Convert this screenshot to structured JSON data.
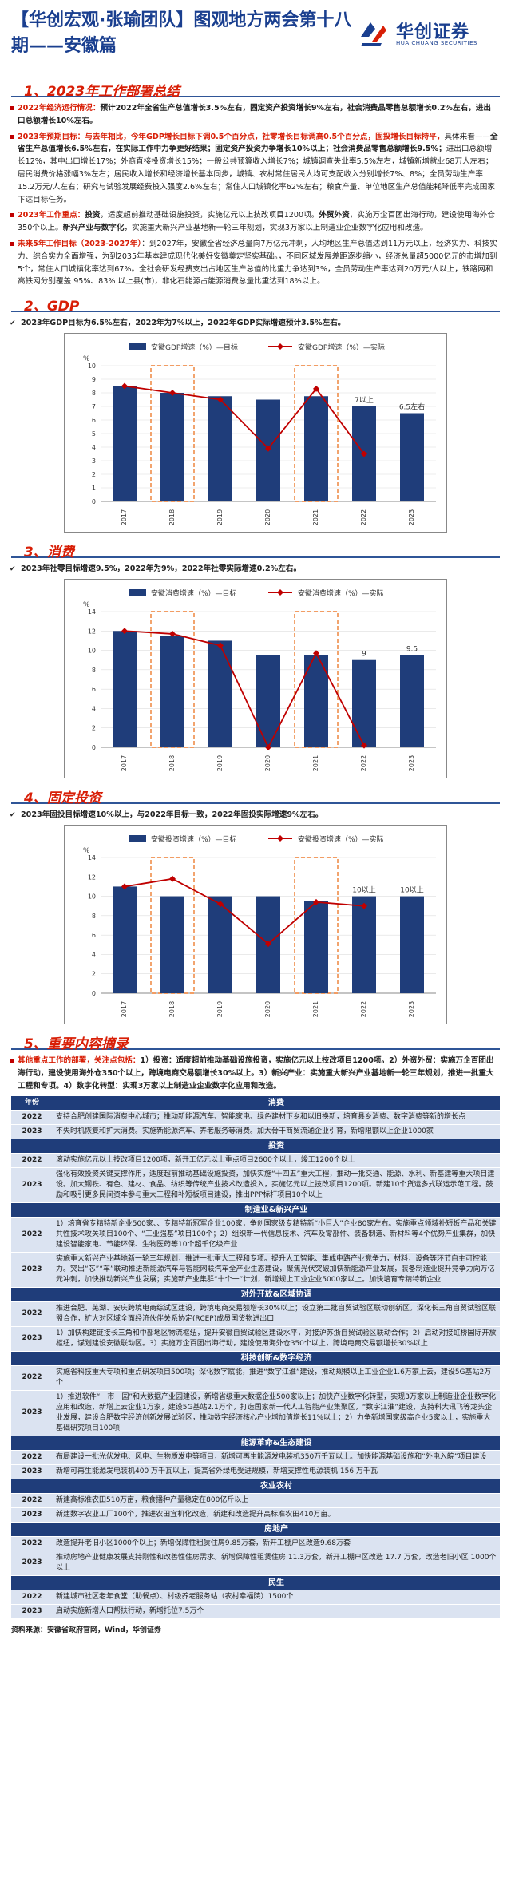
{
  "header": {
    "title": "【华创宏观·张瑜团队】图观地方两会第十八期——安徽篇",
    "logo_cn": "华创证券",
    "logo_en": "HUA CHUANG SECURITIES"
  },
  "sec1": {
    "title": "1、2023年工作部署总结",
    "b1_label": "2022年经济运行情况：",
    "b1_text": "预计2022年全省生产总值增长3.5%左右，固定资产投资增长9%左右，社会消费品零售总额增长0.2%左右，进出口总额增长10%左右。",
    "b2_label": "2023年预期目标：",
    "b2_red": "与去年相比，今年GDP增长目标下调0.5个百分点，社零增长目标调高0.5个百分点，固投增长目标持平，",
    "b2_text1": "具体来看——",
    "b2_bold": "全省生产总值增长6.5%左右，在实际工作中力争更好结果；固定资产投资力争增长10%以上；社会消费品零售总额增长9.5%；",
    "b2_text2": "进出口总额增长12%，其中出口增长17%；外商直接投资增长15%；一般公共预算收入增长7%；城镇调查失业率5.5%左右，城镇新增就业68万人左右；居民消费价格涨幅3%左右；居民收入增长和经济增长基本同步，城镇、农村常住居民人均可支配收入分别增长7%、8%；全员劳动生产率15.2万元/人左右；研究与试验发展经费投入强度2.6%左右；常住人口城镇化率62%左右；粮食产量、单位地区生产总值能耗降低率完成国家下达目标任务。",
    "b3_label": "2023年工作重点：",
    "b3_t1": "投资",
    "b3_t2": "，适度超前推动基础设施投资，实施亿元以上技改项目1200项。",
    "b3_t3": "外贸外资",
    "b3_t4": "，实施万企百团出海行动，建设使用海外仓350个以上。",
    "b3_t5": "新兴产业与数字化",
    "b3_t6": "，实施重大新兴产业基地新一轮三年规划，实现3万家以上制造业企业数字化应用和改造。",
    "b4_label": "未来5年工作目标（2023-2027年）",
    "b4_text": "：到2027年，安徽全省经济总量向7万亿元冲刺，人均地区生产总值达到11万元以上，经济实力、科技实力、综合实力全面增强，为到2035年基本建成现代化美好安徽奠定坚实基础。，不同区域发展差距逐步缩小，经济总量超5000亿元的市增加到5个，常住人口城镇化率达到67%。全社会研发经费支出占地区生产总值的比重力争达到3%，全员劳动生产率达到20万元/人以上，铁路网和高铁网分别覆盖 95%、83% 以上县(市)，非化石能源占能源消费总量比重达到18%以上。"
  },
  "sec2": {
    "title": "2、GDP",
    "check": "2023年GDP目标为6.5%左右，2022年为7%以上，2022年GDP实际增速预计3.5%左右。"
  },
  "sec3": {
    "title": "3、消费",
    "check": "2023年社零目标增速9.5%，2022年为9%，2022年社零实际增速0.2%左右。"
  },
  "sec4": {
    "title": "4、固定投资",
    "check": "2023年固投目标增速10%以上，与2022年目标一致，2022年固投实际增速9%左右。"
  },
  "chart_data": [
    {
      "type": "bar",
      "series": [
        {
          "name": "安徽GDP增速（%）—目标",
          "values": [
            8.5,
            8.0,
            7.75,
            7.5,
            7.75,
            7.0,
            6.5
          ]
        },
        {
          "name": "安徽GDP增速（%）—实际",
          "values": [
            8.5,
            8.0,
            7.5,
            3.9,
            8.3,
            3.5,
            null
          ]
        }
      ],
      "categories": [
        "2017",
        "2018",
        "2019",
        "2020",
        "2021",
        "2022",
        "2023"
      ],
      "ylim": [
        0,
        10
      ],
      "yticks": [
        0,
        1,
        2,
        3,
        4,
        5,
        6,
        7,
        8,
        9,
        10
      ],
      "ylabel": "%",
      "data_labels": {
        "5": "7以上",
        "6": "6.5左右"
      },
      "highlight": [
        1,
        4
      ]
    },
    {
      "type": "bar",
      "series": [
        {
          "name": "安徽消费增速（%）—目标",
          "values": [
            12,
            11.5,
            11,
            9.5,
            9.5,
            9,
            9.5
          ]
        },
        {
          "name": "安徽消费增速（%）—实际",
          "values": [
            12,
            11.7,
            10.5,
            0,
            9.7,
            0.2,
            null
          ]
        }
      ],
      "categories": [
        "2017",
        "2018",
        "2019",
        "2020",
        "2021",
        "2022",
        "2023"
      ],
      "ylim": [
        0,
        14
      ],
      "yticks": [
        0,
        2,
        4,
        6,
        8,
        10,
        12,
        14
      ],
      "ylabel": "%",
      "data_labels": {
        "5": "9",
        "6": "9.5"
      },
      "highlight": [
        1,
        4
      ]
    },
    {
      "type": "bar",
      "series": [
        {
          "name": "安徽投资增速（%）—目标",
          "values": [
            11,
            10,
            10,
            10,
            9.5,
            10,
            10
          ]
        },
        {
          "name": "安徽投资增速（%）—实际",
          "values": [
            11,
            11.8,
            9.2,
            5.1,
            9.4,
            9,
            null
          ]
        }
      ],
      "categories": [
        "2017",
        "2018",
        "2019",
        "2020",
        "2021",
        "2022",
        "2023"
      ],
      "ylim": [
        0,
        14
      ],
      "yticks": [
        0,
        2,
        4,
        6,
        8,
        10,
        12,
        14
      ],
      "ylabel": "%",
      "data_labels": {
        "5": "10以上",
        "6": "10以上"
      },
      "highlight": [
        1,
        4
      ]
    }
  ],
  "sec5": {
    "title": "5、重要内容摘录",
    "intro_label": "其他重点工作的部署，关注点包括：",
    "intro_text": "1）投资：适度超前推动基础设施投资，实施亿元以上技改项目1200项。2）外资外贸：实施万企百团出海行动，建设使用海外仓350个以上，跨境电商交易额增长30%以上。3）新兴产业：实施重大新兴产业基地新一轮三年规划，推进一批重大工程和专项。4）数字化转型：实现3万家以上制造业企业数字化应用和改造。"
  },
  "table": {
    "header_year": "年份",
    "sections": [
      {
        "cat": "消费",
        "rows": [
          {
            "y": "2022",
            "t": "支持合肥创建国际消费中心城市；推动新能源汽车、智能家电、绿色建材下乡和以旧换新，培育县乡消费、数字消费等新的增长点"
          },
          {
            "y": "2023",
            "t": "不失时机恢复和扩大消费。实施新能源汽车、养老服务等消费。加大骨干商贸流通企业引育，新增限额以上企业1000家"
          }
        ]
      },
      {
        "cat": "投资",
        "rows": [
          {
            "y": "2022",
            "t": "滚动实施亿元以上技改项目1200项，新开工亿元以上重点项目2600个以上，竣工1200个以上"
          },
          {
            "y": "2023",
            "t": "强化有效投资关键支撑作用，适度超前推动基础设施投资，加快实施“十四五”重大工程，推动一批交通、能源、水利、新基建等重大项目建设。加大钢铁、有色、建材、食品、纺织等传统产业技术改造投入，实施亿元以上技改项目1200项。新建10个货运多式联运示范工程。鼓励和吸引更多民间资本参与重大工程和补短板项目建设，推出PPP标杆项目10个以上"
          }
        ]
      },
      {
        "cat": "制造业&新兴产业",
        "rows": [
          {
            "y": "2022",
            "t": "1）培育省专精特新企业500家、、专精特新冠军企业100家，争创国家级专精特新“小巨人”企业80家左右。实施重点领域补短板产品和关键共性技术攻关项目100个、“工业强基”项目100个；2）组织新一代信息技术、汽车及零部件、装备制造、新材料等4个优势产业集群，加快建设智能家电、节能环保、生物医药等10个超千亿级产业"
          },
          {
            "y": "2023",
            "t": "实施重大新兴产业基地新一轮三年规划，推进一批重大工程和专项。提升人工智能、集成电路产业竞争力，材料，设备等环节自主可控能力。突出“芯”“车”联动推进新能源汽车与智能网联汽车全产业生态建设，聚焦光伏突破加快新能源产业发展，装备制造业提升竞争力向万亿元冲刺，加快推动新兴产业发展；实施新产业集群“十个一”计划，新增规上工业企业5000家以上。加快培育专精特新企业"
          }
        ]
      },
      {
        "cat": "对外开放&区域协调",
        "rows": [
          {
            "y": "2022",
            "t": "推进合肥、芜湖、安庆跨境电商综试区建设，跨境电商交易额增长30%以上；设立第二批自贸试验区联动创新区。深化长三角自贸试验区联盟合作，扩大对区域全面经济伙伴关系协定(RCEP)成员国货物进出口"
          },
          {
            "y": "2023",
            "t": "1）加快构建链接长三角和中部地区物流枢纽，提升安徽自贸试验区建设水平，对接沪苏浙自贸试验区联动合作；2）启动对接虹桥国际开放枢纽，谋划建设安徽联动区。3）实施万企百团出海行动，建设使用海外仓350个以上，跨境电商交易额增长30%以上"
          }
        ]
      },
      {
        "cat": "科技创新&数字经济",
        "rows": [
          {
            "y": "2022",
            "t": "实施省科技重大专项和重点研发项目500项；深化数字赋能，推进“数字江淮”建设，推动规模以上工业企业1.6万家上云，建设5G基站2万个"
          },
          {
            "y": "2023",
            "t": "1）推进软件“一市一园”和大数据产业园建设，新增省级重大数据企业500家以上；加快产业数字化转型，实现3万家以上制造业企业数字化应用和改造，新增上云企业1万家，建设5G基站2.1万个，打造国家新一代人工智能产业集聚区，“数字江淮”建设，支持科大讯飞等龙头企业发展，建设合肥数字经济创新发展试验区，推动数字经济核心产业增加值增长11%以上；2）力争新增国家级高企业5家以上，实施重大基础研究项目100项"
          }
        ]
      },
      {
        "cat": "能源革命&生态建设",
        "rows": [
          {
            "y": "2022",
            "t": "布局建设一批光伏发电、风电、生物质发电等项目，新增可再生能源发电装机350万千瓦以上。加快能源基础设施和“外电入皖”项目建设"
          },
          {
            "y": "2023",
            "t": "新增可再生能源发电装机400 万千瓦以上，提高省外绿电受进规模，新增支撑性电源装机 156 万千瓦"
          }
        ]
      },
      {
        "cat": "农业农村",
        "rows": [
          {
            "y": "2022",
            "t": "新建高标准农田510万亩，粮食播种产量稳定在800亿斤以上"
          },
          {
            "y": "2023",
            "t": "新建数字农业工厂100个，推进农田宜机化改造，新建和改造提升高标准农田410万亩。"
          }
        ]
      },
      {
        "cat": "房地产",
        "rows": [
          {
            "y": "2022",
            "t": "改造提升老旧小区1000个以上；新增保障性租赁住房9.85万套，新开工棚户区改造9.68万套"
          },
          {
            "y": "2023",
            "t": "推动房地产业健康发展支持刚性和改善性住房需求。新增保障性租赁住房 11.3万套，新开工棚户区改造 17.7 万套，改造老旧小区 1000个以上"
          }
        ]
      },
      {
        "cat": "民生",
        "rows": [
          {
            "y": "2022",
            "t": "新建城市社区老年食堂（助餐点）、村级养老服务站（农村幸福院）1500个"
          },
          {
            "y": "2023",
            "t": "启动实施新增人口帮扶行动，新增托位7.5万个"
          }
        ]
      }
    ]
  },
  "source": "资料来源：安徽省政府官网，Wind，华创证券"
}
